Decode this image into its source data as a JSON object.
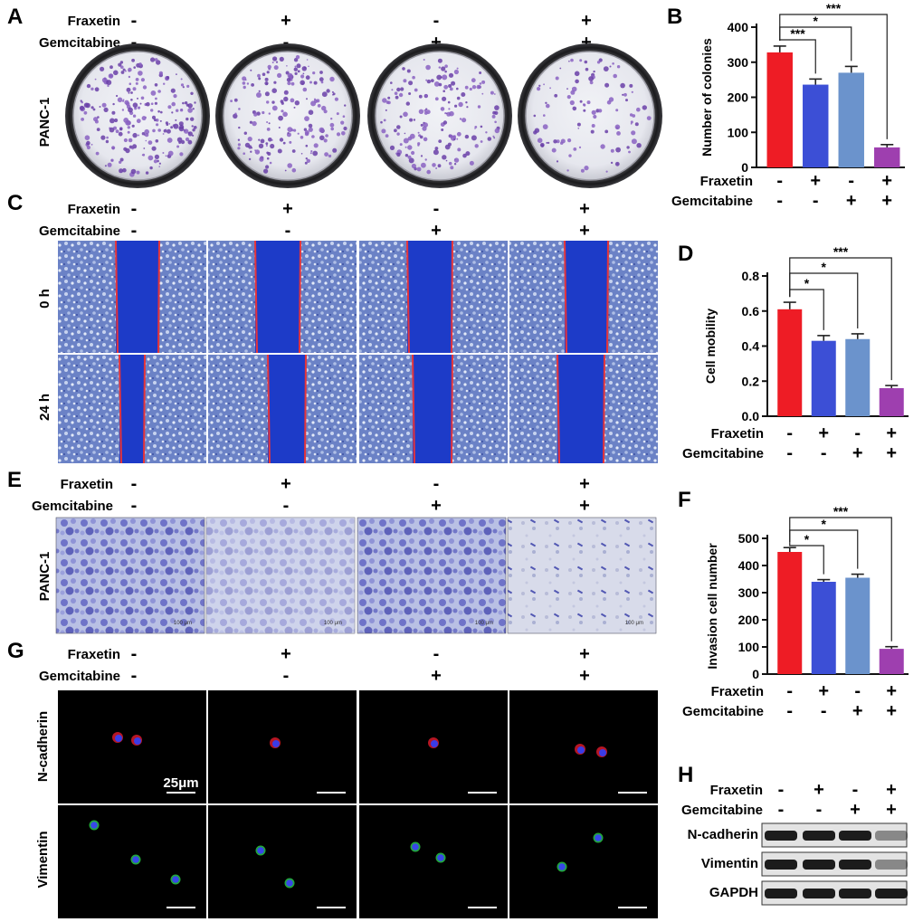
{
  "panels": {
    "A": {
      "letter": "A",
      "rows": [
        {
          "label": "Fraxetin",
          "signs": [
            "-",
            "+",
            "-",
            "+"
          ]
        },
        {
          "label": "Gemcitabine",
          "signs": [
            "-",
            "-",
            "+",
            "+"
          ]
        }
      ],
      "side_label": "PANC-1"
    },
    "C": {
      "letter": "C",
      "rows": [
        {
          "label": "Fraxetin",
          "signs": [
            "-",
            "+",
            "-",
            "+"
          ]
        },
        {
          "label": "Gemcitabine",
          "signs": [
            "-",
            "-",
            "+",
            "+"
          ]
        }
      ],
      "time_labels": [
        "0 h",
        "24 h"
      ]
    },
    "E": {
      "letter": "E",
      "rows": [
        {
          "label": "Fraxetin",
          "signs": [
            "-",
            "+",
            "-",
            "+"
          ]
        },
        {
          "label": "Gemcitabine",
          "signs": [
            "-",
            "-",
            "+",
            "+"
          ]
        }
      ],
      "side_label": "PANC-1",
      "scalebar_text": "100 μm"
    },
    "G": {
      "letter": "G",
      "rows": [
        {
          "label": "Fraxetin",
          "signs": [
            "-",
            "+",
            "-",
            "+"
          ]
        },
        {
          "label": "Gemcitabine",
          "signs": [
            "-",
            "-",
            "+",
            "+"
          ]
        }
      ],
      "markers": [
        "N-cadherin",
        "Vimentin"
      ],
      "scalebar_text": "25μm"
    },
    "H": {
      "letter": "H",
      "rows": [
        {
          "label": "Fraxetin",
          "signs": [
            "-",
            "+",
            "-",
            "+"
          ]
        },
        {
          "label": "Gemcitabine",
          "signs": [
            "-",
            "-",
            "+",
            "+"
          ]
        }
      ],
      "bands": [
        {
          "label": "N-cadherin",
          "intensity": [
            1,
            1,
            1,
            0.35
          ]
        },
        {
          "label": "Vimentin",
          "intensity": [
            1,
            1,
            1,
            0.35
          ]
        },
        {
          "label": "GAPDH",
          "intensity": [
            1,
            1,
            1,
            1
          ]
        }
      ]
    }
  },
  "chart_data": [
    {
      "panel": "B",
      "type": "bar",
      "ylabel": "Number of colonies",
      "ylim": [
        0,
        400
      ],
      "yticks": [
        0,
        100,
        200,
        300,
        400
      ],
      "values": [
        328,
        236,
        270,
        57
      ],
      "errors": [
        18,
        16,
        18,
        8
      ],
      "colors": [
        "#ee1c25",
        "#3c4fd6",
        "#6b93cc",
        "#9e3faf"
      ],
      "treatments": [
        {
          "label": "Fraxetin",
          "signs": [
            "-",
            "+",
            "-",
            "+"
          ]
        },
        {
          "label": "Gemcitabine",
          "signs": [
            "-",
            "-",
            "+",
            "+"
          ]
        }
      ],
      "significance": [
        {
          "from": 0,
          "to": 1,
          "label": "***"
        },
        {
          "from": 0,
          "to": 2,
          "label": "*"
        },
        {
          "from": 0,
          "to": 3,
          "label": "***"
        }
      ]
    },
    {
      "panel": "D",
      "type": "bar",
      "ylabel": "Cell mobility",
      "ylim": [
        0,
        0.8
      ],
      "yticks": [
        "0.0",
        "0.2",
        "0.4",
        "0.6",
        "0.8"
      ],
      "values": [
        0.61,
        0.43,
        0.44,
        0.16
      ],
      "errors": [
        0.04,
        0.03,
        0.03,
        0.015
      ],
      "colors": [
        "#ee1c25",
        "#3c4fd6",
        "#6b93cc",
        "#9e3faf"
      ],
      "treatments": [
        {
          "label": "Fraxetin",
          "signs": [
            "-",
            "+",
            "-",
            "+"
          ]
        },
        {
          "label": "Gemcitabine",
          "signs": [
            "-",
            "-",
            "+",
            "+"
          ]
        }
      ],
      "significance": [
        {
          "from": 0,
          "to": 1,
          "label": "*"
        },
        {
          "from": 0,
          "to": 2,
          "label": "*"
        },
        {
          "from": 0,
          "to": 3,
          "label": "***"
        }
      ]
    },
    {
      "panel": "F",
      "type": "bar",
      "ylabel": "Invasion cell number",
      "ylim": [
        0,
        500
      ],
      "yticks": [
        0,
        100,
        200,
        300,
        400,
        500
      ],
      "values": [
        450,
        340,
        355,
        93
      ],
      "errors": [
        16,
        8,
        13,
        8
      ],
      "colors": [
        "#ee1c25",
        "#3c4fd6",
        "#6b93cc",
        "#9e3faf"
      ],
      "treatments": [
        {
          "label": "Fraxetin",
          "signs": [
            "-",
            "+",
            "-",
            "+"
          ]
        },
        {
          "label": "Gemcitabine",
          "signs": [
            "-",
            "-",
            "+",
            "+"
          ]
        }
      ],
      "significance": [
        {
          "from": 0,
          "to": 1,
          "label": "*"
        },
        {
          "from": 0,
          "to": 2,
          "label": "*"
        },
        {
          "from": 0,
          "to": 3,
          "label": "***"
        }
      ]
    }
  ]
}
